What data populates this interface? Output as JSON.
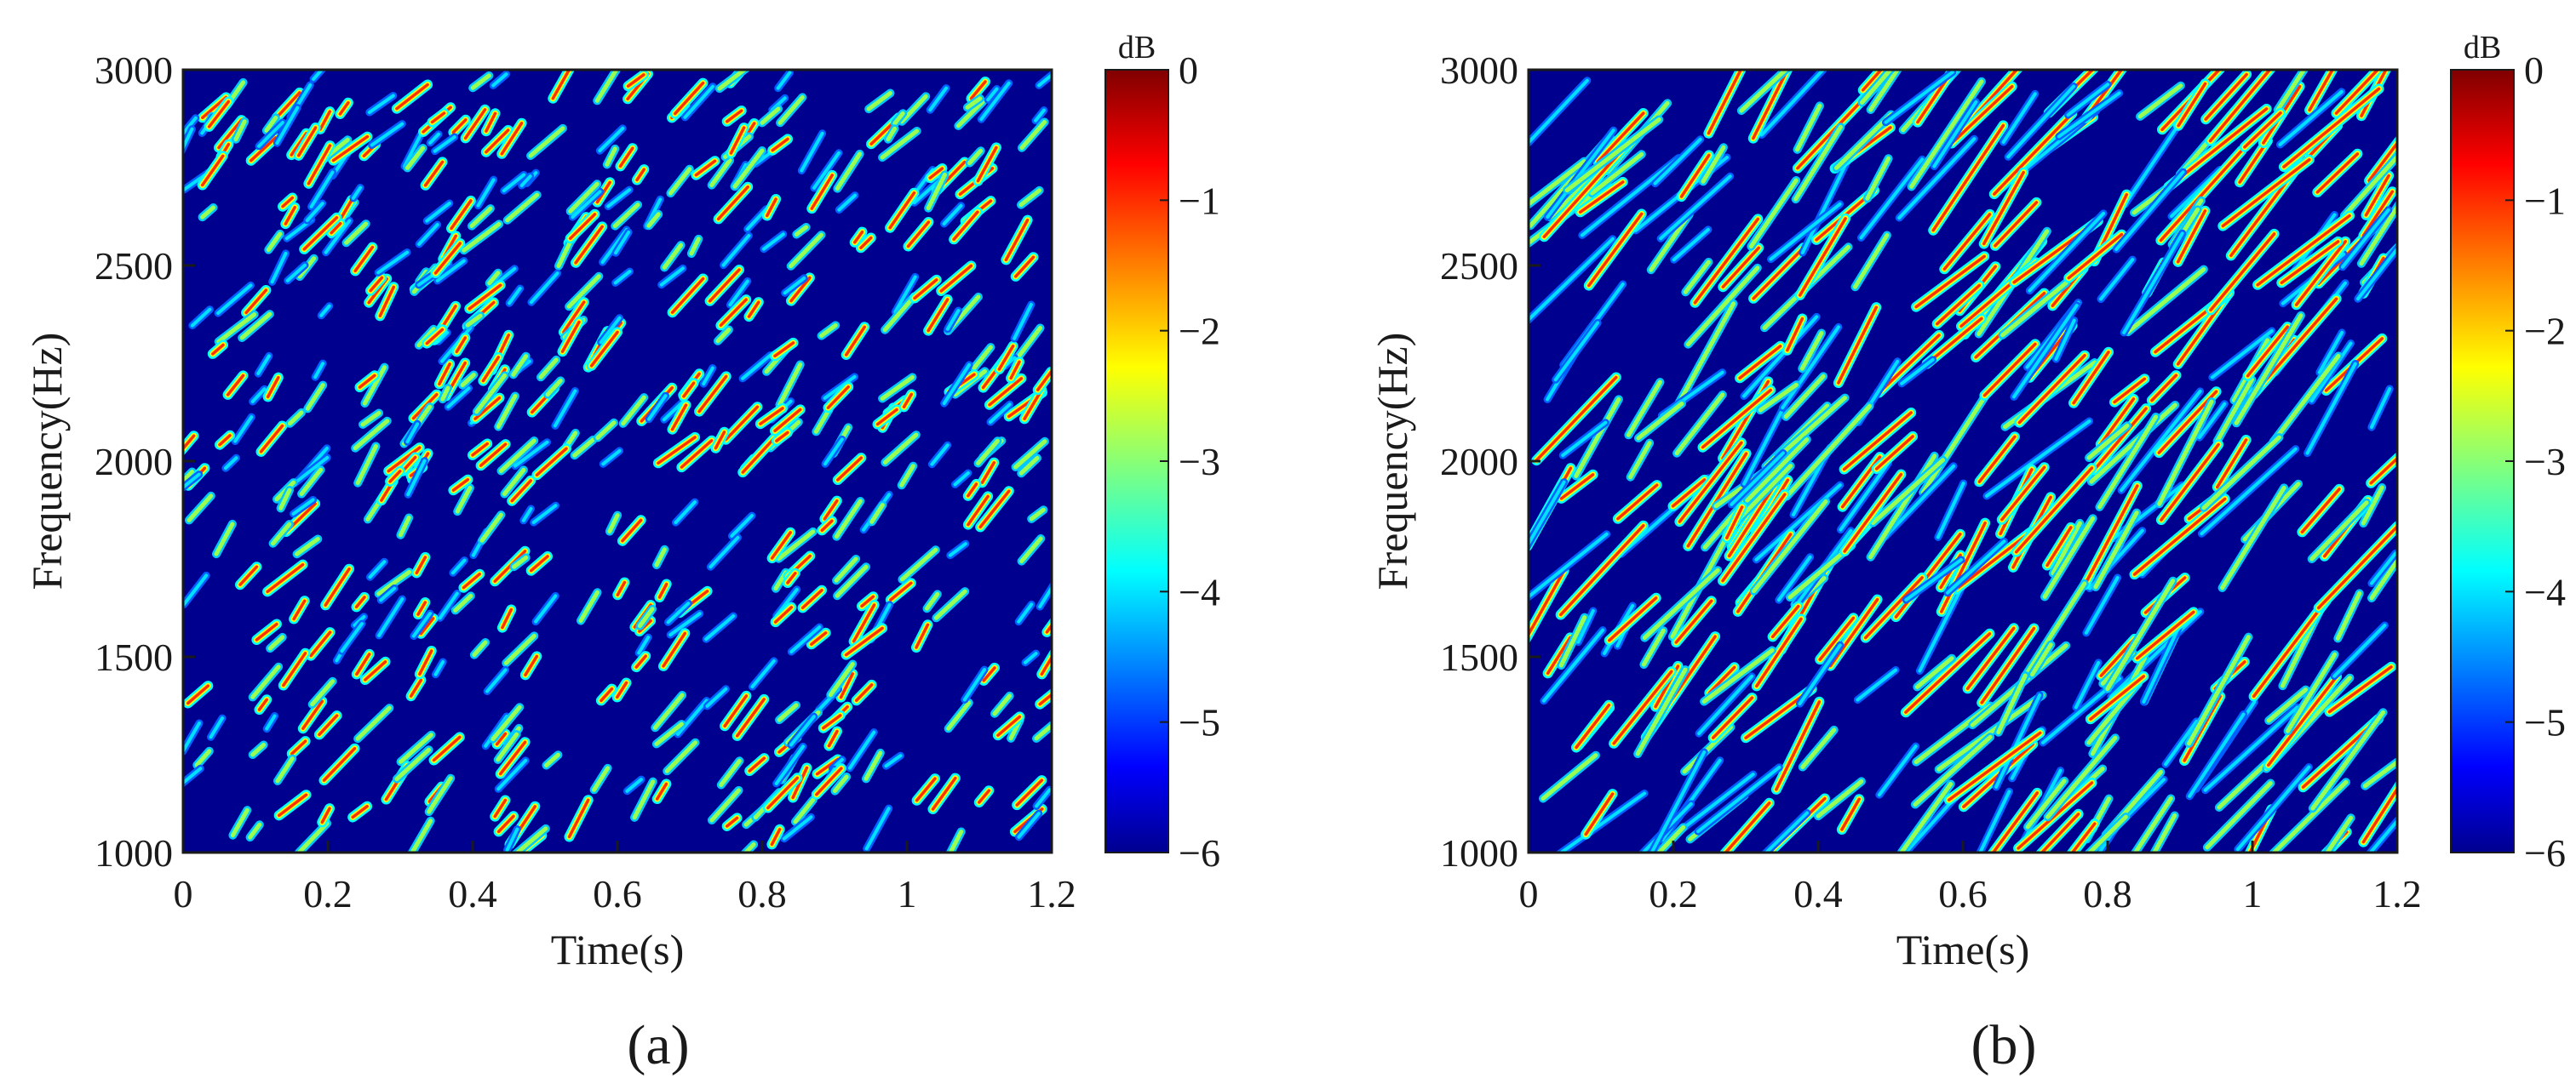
{
  "figure": {
    "panels": [
      {
        "label": "(a)"
      },
      {
        "label": "(b)"
      }
    ]
  },
  "colors": {
    "colormap": "jet",
    "colormap_stops": [
      "#00008f",
      "#0000ff",
      "#00ffff",
      "#ffff00",
      "#ff0000",
      "#800000"
    ],
    "background_floor": "#00008f"
  },
  "chart_data": [
    {
      "type": "heatmap",
      "panel_label": "(a)",
      "title": "",
      "xlabel": "Time(s)",
      "ylabel": "Frequency(Hz)",
      "xlim": [
        0,
        1.2
      ],
      "ylim": [
        1000,
        3000
      ],
      "x_ticks": [
        0,
        0.2,
        0.4,
        0.6,
        0.8,
        1,
        1.2
      ],
      "x_tick_labels": [
        "0",
        "0.2",
        "0.4",
        "0.6",
        "0.8",
        "1",
        "1.2"
      ],
      "y_ticks": [
        1000,
        1500,
        2000,
        2500,
        3000
      ],
      "y_tick_labels": [
        "1000",
        "1500",
        "2000",
        "2500",
        "3000"
      ],
      "colorbar": {
        "title": "dB",
        "range": [
          -6,
          0
        ],
        "ticks": [
          0,
          -1,
          -2,
          -3,
          -4,
          -5,
          -6
        ],
        "tick_labels": [
          "0",
          "−1",
          "−2",
          "−3",
          "−4",
          "−5",
          "−6"
        ]
      },
      "texture": {
        "streak_density": "dense",
        "streak_length": "short",
        "dominant_slope": "rising"
      }
    },
    {
      "type": "heatmap",
      "panel_label": "(b)",
      "title": "",
      "xlabel": "Time(s)",
      "ylabel": "Frequency(Hz)",
      "xlim": [
        0,
        1.2
      ],
      "ylim": [
        1000,
        3000
      ],
      "x_ticks": [
        0,
        0.2,
        0.4,
        0.6,
        0.8,
        1,
        1.2
      ],
      "x_tick_labels": [
        "0",
        "0.2",
        "0.4",
        "0.6",
        "0.8",
        "1",
        "1.2"
      ],
      "y_ticks": [
        1000,
        1500,
        2000,
        2500,
        3000
      ],
      "y_tick_labels": [
        "1000",
        "1500",
        "2000",
        "2500",
        "3000"
      ],
      "colorbar": {
        "title": "dB",
        "range": [
          -6,
          0
        ],
        "ticks": [
          0,
          -1,
          -2,
          -3,
          -4,
          -5,
          -6
        ],
        "tick_labels": [
          "0",
          "−1",
          "−2",
          "−3",
          "−4",
          "−5",
          "−6"
        ]
      },
      "texture": {
        "streak_density": "moderate",
        "streak_length": "long",
        "dominant_slope": "rising"
      }
    }
  ]
}
